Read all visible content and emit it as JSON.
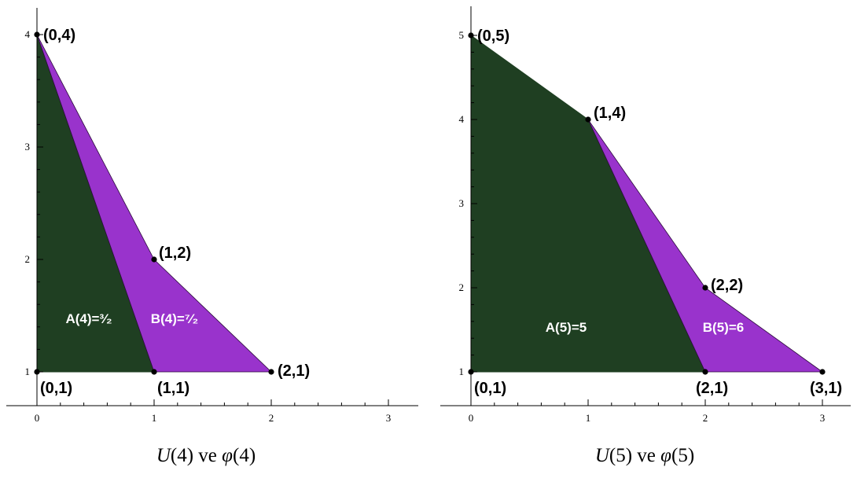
{
  "colors": {
    "region_a": "#1f3f22",
    "region_b": "#9933cc",
    "axis": "#000000",
    "label_white": "#ffffff"
  },
  "panels": [
    {
      "id": "left",
      "x_ticks": [
        "0",
        "1",
        "2",
        "3"
      ],
      "y_ticks": [
        "1",
        "2",
        "3",
        "4"
      ],
      "region_a": [
        [
          0,
          1
        ],
        [
          0,
          4
        ],
        [
          1,
          1
        ]
      ],
      "region_b": [
        [
          0,
          4
        ],
        [
          1,
          2
        ],
        [
          2,
          1
        ],
        [
          1,
          1
        ]
      ],
      "points": [
        {
          "x": 0,
          "y": 4,
          "label": "(0,4)"
        },
        {
          "x": 1,
          "y": 2,
          "label": "(1,2)"
        },
        {
          "x": 2,
          "y": 1,
          "label": "(2,1)"
        },
        {
          "x": 0,
          "y": 1,
          "label": "(0,1)"
        },
        {
          "x": 1,
          "y": 1,
          "label": "(1,1)"
        }
      ],
      "label_a": "A(4)=³⁄₂",
      "label_b": "B(4)=⁷⁄₂",
      "caption": {
        "u_symbol": "U",
        "u_arg": "(4)",
        "word": "ve",
        "phi_symbol": "φ",
        "phi_arg": "(4)"
      }
    },
    {
      "id": "right",
      "x_ticks": [
        "0",
        "1",
        "2",
        "3"
      ],
      "y_ticks": [
        "1",
        "2",
        "3",
        "4",
        "5"
      ],
      "region_a": [
        [
          0,
          1
        ],
        [
          0,
          5
        ],
        [
          1,
          4
        ],
        [
          2,
          1
        ]
      ],
      "region_b": [
        [
          1,
          4
        ],
        [
          2,
          2
        ],
        [
          3,
          1
        ],
        [
          2,
          1
        ]
      ],
      "points": [
        {
          "x": 0,
          "y": 5,
          "label": "(0,5)"
        },
        {
          "x": 1,
          "y": 4,
          "label": "(1,4)"
        },
        {
          "x": 2,
          "y": 2,
          "label": "(2,2)"
        },
        {
          "x": 0,
          "y": 1,
          "label": "(0,1)"
        },
        {
          "x": 2,
          "y": 1,
          "label": "(2,1)"
        },
        {
          "x": 3,
          "y": 1,
          "label": "(3,1)"
        }
      ],
      "label_a": "A(5)=5",
      "label_b": "B(5)=6",
      "caption": {
        "u_symbol": "U",
        "u_arg": "(5)",
        "word": "ve",
        "phi_symbol": "φ",
        "phi_arg": "(5)"
      }
    }
  ]
}
